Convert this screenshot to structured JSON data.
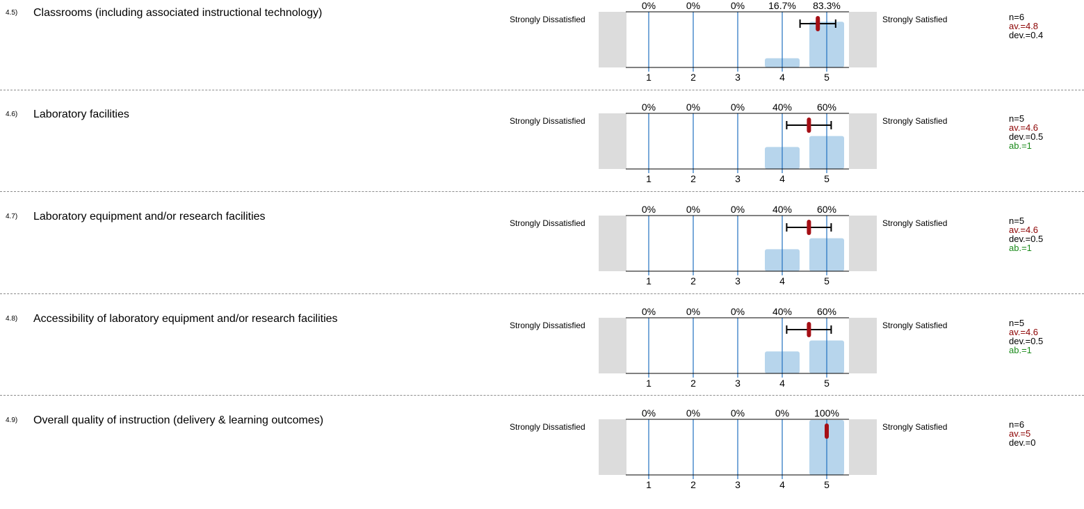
{
  "scale": {
    "left_label": "Strongly Dissatisfied",
    "right_label": "Strongly Satisfied",
    "ticks": [
      "1",
      "2",
      "3",
      "4",
      "5"
    ]
  },
  "colors": {
    "bar": "#b7d5ec",
    "gridline": "#1f6fbf",
    "side_panel": "#dcdcdc",
    "mean_marker": "#a50f15",
    "av_text": "#8b0000",
    "ab_text": "#1a8a1a"
  },
  "items": [
    {
      "num": "4.5)",
      "text": "Classrooms (including associated instructional technology)",
      "stats": {
        "n": "n=6",
        "av": "av.=4.8",
        "dev": "dev.=0.4",
        "ab": ""
      }
    },
    {
      "num": "4.6)",
      "text": "Laboratory facilities",
      "stats": {
        "n": "n=5",
        "av": "av.=4.6",
        "dev": "dev.=0.5",
        "ab": "ab.=1"
      }
    },
    {
      "num": "4.7)",
      "text": "Laboratory equipment and/or research facilities",
      "stats": {
        "n": "n=5",
        "av": "av.=4.6",
        "dev": "dev.=0.5",
        "ab": "ab.=1"
      }
    },
    {
      "num": "4.8)",
      "text": "Accessibility of laboratory equipment and/or research facilities",
      "stats": {
        "n": "n=5",
        "av": "av.=4.6",
        "dev": "dev.=0.5",
        "ab": "ab.=1"
      }
    },
    {
      "num": "4.9)",
      "text": "Overall quality of instruction (delivery & learning outcomes)",
      "stats": {
        "n": "n=6",
        "av": "av.=5",
        "dev": "dev.=0",
        "ab": ""
      }
    }
  ],
  "chart_data": [
    {
      "type": "bar",
      "categories": [
        "1",
        "2",
        "3",
        "4",
        "5"
      ],
      "percent_labels": [
        "0%",
        "0%",
        "0%",
        "16.7%",
        "83.3%"
      ],
      "values": [
        0,
        0,
        0,
        16.7,
        83.3
      ],
      "ylim": [
        0,
        100
      ],
      "mean": 4.8,
      "deviation": 0.4
    },
    {
      "type": "bar",
      "categories": [
        "1",
        "2",
        "3",
        "4",
        "5"
      ],
      "percent_labels": [
        "0%",
        "0%",
        "0%",
        "40%",
        "60%"
      ],
      "values": [
        0,
        0,
        0,
        40,
        60
      ],
      "ylim": [
        0,
        100
      ],
      "mean": 4.6,
      "deviation": 0.5
    },
    {
      "type": "bar",
      "categories": [
        "1",
        "2",
        "3",
        "4",
        "5"
      ],
      "percent_labels": [
        "0%",
        "0%",
        "0%",
        "40%",
        "60%"
      ],
      "values": [
        0,
        0,
        0,
        40,
        60
      ],
      "ylim": [
        0,
        100
      ],
      "mean": 4.6,
      "deviation": 0.5
    },
    {
      "type": "bar",
      "categories": [
        "1",
        "2",
        "3",
        "4",
        "5"
      ],
      "percent_labels": [
        "0%",
        "0%",
        "0%",
        "40%",
        "60%"
      ],
      "values": [
        0,
        0,
        0,
        40,
        60
      ],
      "ylim": [
        0,
        100
      ],
      "mean": 4.6,
      "deviation": 0.5
    },
    {
      "type": "bar",
      "categories": [
        "1",
        "2",
        "3",
        "4",
        "5"
      ],
      "percent_labels": [
        "0%",
        "0%",
        "0%",
        "0%",
        "100%"
      ],
      "values": [
        0,
        0,
        0,
        0,
        100
      ],
      "ylim": [
        0,
        100
      ],
      "mean": 5,
      "deviation": 0
    }
  ]
}
